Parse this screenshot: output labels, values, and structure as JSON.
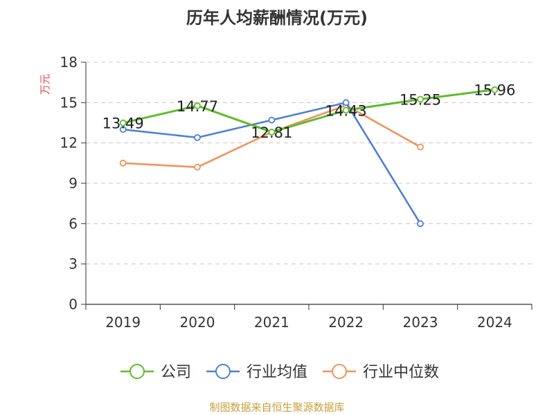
{
  "title": "历年人均薪酬情况(万元)",
  "source": "制图数据来自恒生聚源数据库",
  "chart_data": {
    "type": "line",
    "title": "历年人均薪酬情况(万元)",
    "ylabel": "万元",
    "xlabel": "",
    "categories": [
      "2019",
      "2020",
      "2021",
      "2022",
      "2023",
      "2024"
    ],
    "ylim": [
      0,
      18
    ],
    "yticks": [
      0,
      3,
      6,
      9,
      12,
      15,
      18
    ],
    "grid": true,
    "legend_position": "bottom",
    "series": [
      {
        "name": "公司",
        "color": "#5cbd2b",
        "values": [
          13.49,
          14.77,
          12.81,
          14.43,
          15.25,
          15.96
        ],
        "labels": [
          "13.49",
          "14.77",
          "12.81",
          "14.43",
          "15.25",
          "15.96"
        ]
      },
      {
        "name": "行业均值",
        "color": "#4f7fd6",
        "values": [
          13.0,
          12.4,
          13.7,
          15.0,
          6.0,
          null
        ]
      },
      {
        "name": "行业中位数",
        "color": "#f2925c",
        "values": [
          10.5,
          10.2,
          12.8,
          14.8,
          11.7,
          null
        ]
      }
    ]
  }
}
